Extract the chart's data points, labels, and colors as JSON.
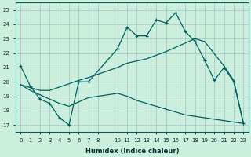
{
  "title": "",
  "xlabel": "Humidex (Indice chaleur)",
  "bg_color": "#cceedd",
  "line_color": "#006060",
  "grid_color": "#aacccc",
  "xlim": [
    -0.5,
    23.5
  ],
  "ylim": [
    16.5,
    25.5
  ],
  "xticks": [
    0,
    1,
    2,
    3,
    4,
    5,
    6,
    7,
    8,
    10,
    11,
    12,
    13,
    14,
    15,
    16,
    17,
    18,
    19,
    20,
    21,
    22,
    23
  ],
  "yticks": [
    17,
    18,
    19,
    20,
    21,
    22,
    23,
    24,
    25
  ],
  "line1_x": [
    0,
    1,
    2,
    3,
    4,
    5,
    6,
    7,
    10,
    11,
    12,
    13,
    14,
    15,
    16,
    17,
    18,
    19,
    20,
    21,
    22,
    23
  ],
  "line1_y": [
    21.1,
    19.7,
    18.8,
    18.5,
    17.5,
    17.0,
    20.0,
    20.0,
    22.3,
    23.8,
    23.2,
    23.2,
    24.3,
    24.1,
    24.8,
    23.5,
    22.8,
    21.5,
    20.1,
    21.0,
    20.0,
    17.1
  ],
  "line2_x": [
    0,
    2,
    3,
    6,
    7,
    10,
    11,
    13,
    15,
    17,
    18,
    19,
    21,
    22,
    23
  ],
  "line2_y": [
    19.8,
    19.4,
    19.4,
    20.1,
    20.3,
    21.0,
    21.3,
    21.6,
    22.1,
    22.7,
    23.0,
    22.8,
    21.1,
    20.1,
    17.1
  ],
  "line3_x": [
    0,
    1,
    2,
    3,
    4,
    5,
    6,
    7,
    10,
    11,
    12,
    13,
    14,
    15,
    16,
    17,
    18,
    19,
    20,
    21,
    22,
    23
  ],
  "line3_y": [
    19.8,
    19.4,
    19.1,
    18.8,
    18.5,
    18.3,
    18.6,
    18.9,
    19.2,
    19.0,
    18.7,
    18.5,
    18.3,
    18.1,
    17.9,
    17.7,
    17.6,
    17.5,
    17.4,
    17.3,
    17.2,
    17.1
  ]
}
